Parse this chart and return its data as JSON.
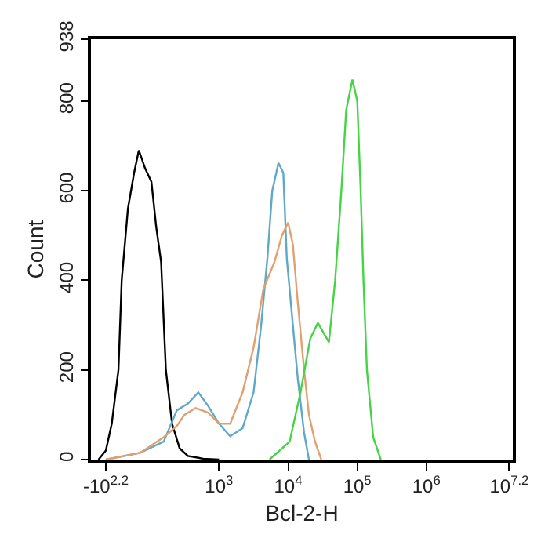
{
  "chart_data": {
    "type": "line",
    "xlabel": "Bcl-2-H",
    "ylabel": "Count",
    "log": "x",
    "xlim": [
      14,
      17800000
    ],
    "xticks": [
      {
        "value": 23,
        "label": "-10$^{2.2}$"
      },
      {
        "value": 1000,
        "label": "10$^{3}$"
      },
      {
        "value": 10000,
        "label": "10$^{4}$"
      },
      {
        "value": 100000,
        "label": "10$^{5}$"
      },
      {
        "value": 1000000,
        "label": "10$^{6}$"
      },
      {
        "value": 15800000,
        "label": "10$^{7.2}$"
      }
    ],
    "ylim": [
      0,
      938
    ],
    "yticks": [
      0,
      200,
      400,
      600,
      800,
      938
    ],
    "grid": false,
    "marker": "none",
    "line_style": "solid",
    "series": [
      {
        "color": "#000000",
        "x": [
          18,
          23,
          28,
          35,
          39,
          48,
          59,
          69,
          85,
          105,
          123,
          145,
          170,
          209,
          269,
          355,
          589,
          1000
        ],
        "values": [
          0,
          20,
          80,
          200,
          400,
          560,
          640,
          690,
          650,
          620,
          520,
          441,
          200,
          80,
          25,
          8,
          2,
          0
        ]
      },
      {
        "color": "#5fa8c8",
        "x": [
          23,
          72,
          158,
          245,
          355,
          501,
          692,
          1000,
          1450,
          2190,
          3160,
          4070,
          5010,
          5890,
          7240,
          8510,
          9550,
          11700,
          13800,
          17000,
          20000
        ],
        "values": [
          0,
          15,
          40,
          110,
          125,
          150,
          120,
          80,
          52,
          70,
          150,
          300,
          450,
          600,
          662,
          640,
          450,
          300,
          180,
          60,
          0
        ]
      },
      {
        "color": "#e0a070",
        "x": [
          23,
          72,
          158,
          245,
          316,
          457,
          692,
          1000,
          1450,
          2190,
          3160,
          4370,
          6310,
          8130,
          10000,
          11700,
          13800,
          17000,
          20000,
          24500,
          30200
        ],
        "values": [
          0,
          15,
          50,
          75,
          100,
          115,
          105,
          80,
          80,
          150,
          250,
          380,
          440,
          500,
          529,
          480,
          350,
          200,
          100,
          40,
          0
        ]
      },
      {
        "color": "#44d444",
        "x": [
          5370,
          10500,
          15100,
          20900,
          26900,
          38900,
          47900,
          58900,
          69200,
          85100,
          100000,
          112000,
          123000,
          138000,
          170000,
          219000
        ],
        "values": [
          0,
          40,
          150,
          270,
          305,
          262,
          400,
          600,
          780,
          848,
          800,
          600,
          400,
          200,
          50,
          0
        ]
      }
    ]
  }
}
